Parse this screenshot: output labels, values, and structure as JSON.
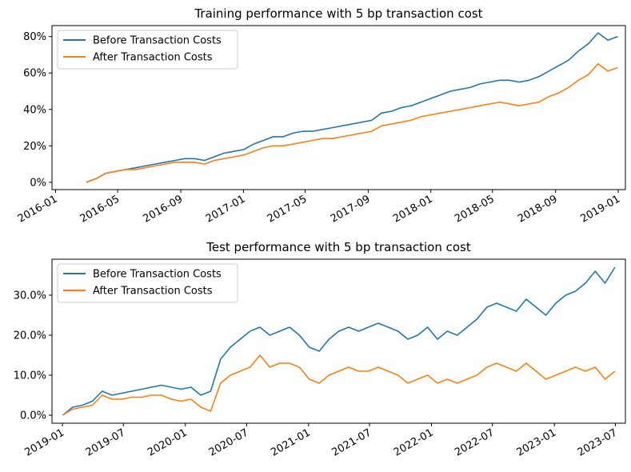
{
  "chart_data": [
    {
      "type": "line",
      "title": "Training performance with 5 bp transaction cost",
      "xlabel": "",
      "ylabel": "",
      "x_start": "2016-03-01",
      "x_end": "2018-12-31",
      "xlim": [
        "2015-12-25",
        "2019-01-15"
      ],
      "ylim": [
        -0.04,
        0.86
      ],
      "x_ticks": [
        {
          "date": "2016-01-01",
          "label": "2016-01"
        },
        {
          "date": "2016-05-01",
          "label": "2016-05"
        },
        {
          "date": "2016-09-01",
          "label": "2016-09"
        },
        {
          "date": "2017-01-01",
          "label": "2017-01"
        },
        {
          "date": "2017-05-01",
          "label": "2017-05"
        },
        {
          "date": "2017-09-01",
          "label": "2017-09"
        },
        {
          "date": "2018-01-01",
          "label": "2018-01"
        },
        {
          "date": "2018-05-01",
          "label": "2018-05"
        },
        {
          "date": "2018-09-01",
          "label": "2018-09"
        },
        {
          "date": "2019-01-01",
          "label": "2019-01"
        }
      ],
      "y_ticks": [
        {
          "value": 0.0,
          "label": "0%"
        },
        {
          "value": 0.2,
          "label": "20%"
        },
        {
          "value": 0.4,
          "label": "40%"
        },
        {
          "value": 0.6,
          "label": "60%"
        },
        {
          "value": 0.8,
          "label": "80%"
        }
      ],
      "legend_position": "top-left",
      "grid": false,
      "series": [
        {
          "name": "Before Transaction Costs",
          "color": "#1f77b4",
          "values": [
            0.0,
            0.02,
            0.05,
            0.06,
            0.07,
            0.08,
            0.09,
            0.1,
            0.11,
            0.12,
            0.13,
            0.13,
            0.12,
            0.14,
            0.16,
            0.17,
            0.18,
            0.21,
            0.23,
            0.25,
            0.25,
            0.27,
            0.28,
            0.28,
            0.29,
            0.3,
            0.31,
            0.32,
            0.33,
            0.34,
            0.38,
            0.39,
            0.41,
            0.42,
            0.44,
            0.46,
            0.48,
            0.5,
            0.51,
            0.52,
            0.54,
            0.55,
            0.56,
            0.56,
            0.55,
            0.56,
            0.58,
            0.61,
            0.64,
            0.67,
            0.72,
            0.76,
            0.82,
            0.78,
            0.8
          ]
        },
        {
          "name": "After Transaction Costs",
          "color": "#ff7f0e",
          "values": [
            0.0,
            0.02,
            0.05,
            0.06,
            0.07,
            0.07,
            0.08,
            0.09,
            0.1,
            0.11,
            0.11,
            0.11,
            0.1,
            0.12,
            0.13,
            0.14,
            0.15,
            0.17,
            0.19,
            0.2,
            0.2,
            0.21,
            0.22,
            0.23,
            0.24,
            0.24,
            0.25,
            0.26,
            0.27,
            0.28,
            0.31,
            0.32,
            0.33,
            0.34,
            0.36,
            0.37,
            0.38,
            0.39,
            0.4,
            0.41,
            0.42,
            0.43,
            0.44,
            0.43,
            0.42,
            0.43,
            0.44,
            0.47,
            0.49,
            0.52,
            0.56,
            0.59,
            0.65,
            0.61,
            0.63
          ]
        }
      ]
    },
    {
      "type": "line",
      "title": "Test performance with 5 bp transaction cost",
      "xlabel": "",
      "ylabel": "",
      "x_start": "2019-01-02",
      "x_end": "2023-06-30",
      "xlim": [
        "2018-12-01",
        "2023-07-31"
      ],
      "ylim": [
        -0.02,
        0.39
      ],
      "x_ticks": [
        {
          "date": "2019-01-01",
          "label": "2019-01"
        },
        {
          "date": "2019-07-01",
          "label": "2019-07"
        },
        {
          "date": "2020-01-01",
          "label": "2020-01"
        },
        {
          "date": "2020-07-01",
          "label": "2020-07"
        },
        {
          "date": "2021-01-01",
          "label": "2021-01"
        },
        {
          "date": "2021-07-01",
          "label": "2021-07"
        },
        {
          "date": "2022-01-01",
          "label": "2022-01"
        },
        {
          "date": "2022-07-01",
          "label": "2022-07"
        },
        {
          "date": "2023-01-01",
          "label": "2023-01"
        },
        {
          "date": "2023-07-01",
          "label": "2023-07"
        }
      ],
      "y_ticks": [
        {
          "value": 0.0,
          "label": "0.0%"
        },
        {
          "value": 0.1,
          "label": "10.0%"
        },
        {
          "value": 0.2,
          "label": "20.0%"
        },
        {
          "value": 0.3,
          "label": "30.0%"
        }
      ],
      "legend_position": "top-left",
      "grid": false,
      "series": [
        {
          "name": "Before Transaction Costs",
          "color": "#1f77b4",
          "values": [
            0.0,
            0.02,
            0.025,
            0.035,
            0.06,
            0.05,
            0.055,
            0.06,
            0.065,
            0.07,
            0.075,
            0.07,
            0.065,
            0.07,
            0.05,
            0.06,
            0.14,
            0.17,
            0.19,
            0.21,
            0.22,
            0.2,
            0.21,
            0.22,
            0.2,
            0.17,
            0.16,
            0.19,
            0.21,
            0.22,
            0.21,
            0.22,
            0.23,
            0.22,
            0.21,
            0.19,
            0.2,
            0.22,
            0.19,
            0.21,
            0.2,
            0.22,
            0.24,
            0.27,
            0.28,
            0.27,
            0.26,
            0.29,
            0.27,
            0.25,
            0.28,
            0.3,
            0.31,
            0.33,
            0.36,
            0.33,
            0.37
          ]
        },
        {
          "name": "After Transaction Costs",
          "color": "#ff7f0e",
          "values": [
            0.0,
            0.015,
            0.02,
            0.025,
            0.05,
            0.04,
            0.04,
            0.045,
            0.045,
            0.05,
            0.05,
            0.04,
            0.035,
            0.04,
            0.02,
            0.01,
            0.08,
            0.1,
            0.11,
            0.12,
            0.15,
            0.12,
            0.13,
            0.13,
            0.12,
            0.09,
            0.08,
            0.1,
            0.11,
            0.12,
            0.11,
            0.11,
            0.12,
            0.11,
            0.1,
            0.08,
            0.09,
            0.1,
            0.08,
            0.09,
            0.08,
            0.09,
            0.1,
            0.12,
            0.13,
            0.12,
            0.11,
            0.13,
            0.11,
            0.09,
            0.1,
            0.11,
            0.12,
            0.11,
            0.12,
            0.09,
            0.11
          ]
        }
      ]
    }
  ]
}
